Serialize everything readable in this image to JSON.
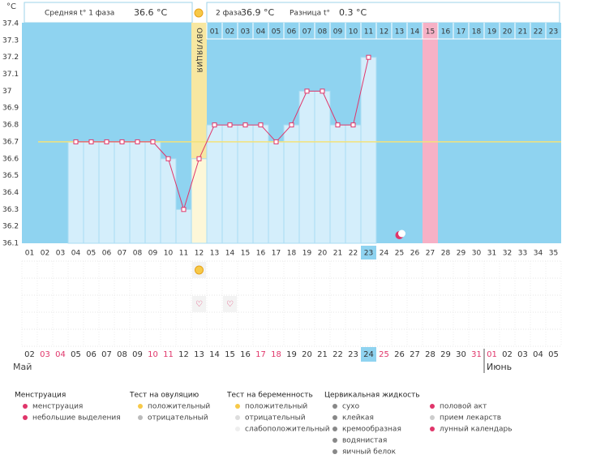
{
  "header": {
    "unit": "°C",
    "phase1_label": "Средняя t° 1 фаза",
    "phase1_value": "36.6 °C",
    "phase2_label": "2 фаза",
    "phase2_value": "36.9 °C",
    "diff_label": "Разница t°",
    "diff_value": "0.3 °C",
    "ovulation": "ОВУЛЯЦИЯ"
  },
  "chart_data": {
    "type": "bbt",
    "categories": [
      "01",
      "02",
      "03",
      "04",
      "05",
      "06",
      "07",
      "08",
      "09",
      "10",
      "11",
      "12",
      "13",
      "14",
      "15",
      "16",
      "17",
      "18",
      "19",
      "20",
      "21",
      "22",
      "23",
      "24",
      "25",
      "26",
      "27",
      "28",
      "29",
      "30",
      "31",
      "32",
      "33",
      "34",
      "35"
    ],
    "values": [
      null,
      null,
      null,
      36.7,
      36.7,
      36.7,
      36.7,
      36.7,
      36.7,
      36.6,
      36.3,
      36.6,
      36.8,
      36.8,
      36.8,
      36.8,
      36.7,
      36.8,
      37,
      37,
      36.8,
      36.8,
      37.2,
      null,
      null,
      null,
      null,
      null,
      null,
      null,
      null,
      null,
      null,
      null,
      null
    ],
    "color": "#e0356a",
    "ylim": [
      36.1,
      37.4
    ],
    "yticks": [
      37.4,
      37.3,
      37.2,
      37.1,
      37,
      36.9,
      36.8,
      36.7,
      36.6,
      36.5,
      36.4,
      36.3,
      36.2,
      36.1
    ],
    "coverline": 36.7,
    "phase2_days": [
      "01",
      "02",
      "03",
      "04",
      "05",
      "06",
      "07",
      "08",
      "09",
      "10",
      "11",
      "12",
      "13",
      "14",
      "15",
      "16",
      "17",
      "18",
      "19",
      "20",
      "21",
      "22",
      "23"
    ],
    "dates": [
      {
        "label": "02"
      },
      {
        "label": "03",
        "color": "#e0356a"
      },
      {
        "label": "04",
        "color": "#e0356a"
      },
      {
        "label": "05"
      },
      {
        "label": "06"
      },
      {
        "label": "07"
      },
      {
        "label": "08"
      },
      {
        "label": "09"
      },
      {
        "label": "10",
        "color": "#e0356a"
      },
      {
        "label": "11",
        "color": "#e0356a"
      },
      {
        "label": "12"
      },
      {
        "label": "13"
      },
      {
        "label": "14"
      },
      {
        "label": "15"
      },
      {
        "label": "16"
      },
      {
        "label": "17",
        "color": "#e0356a"
      },
      {
        "label": "18",
        "color": "#e0356a"
      },
      {
        "label": "19"
      },
      {
        "label": "20"
      },
      {
        "label": "21"
      },
      {
        "label": "22"
      },
      {
        "label": "23"
      },
      {
        "label": "24"
      },
      {
        "label": "25",
        "color": "#e0356a"
      },
      {
        "label": "26"
      },
      {
        "label": "27"
      },
      {
        "label": "28"
      },
      {
        "label": "29"
      },
      {
        "label": "30"
      },
      {
        "label": "31",
        "color": "#e0356a"
      },
      {
        "label": "01",
        "color": "#e0356a"
      },
      {
        "label": "02"
      },
      {
        "label": "03"
      },
      {
        "label": "04"
      },
      {
        "label": "05"
      }
    ],
    "months": [
      "Май",
      "Июнь"
    ]
  },
  "legend": [
    {
      "title": "Менструация",
      "items": [
        "менструация",
        "небольшие выделения"
      ]
    },
    {
      "title": "Тест на овуляцию",
      "items": [
        "положительный",
        "отрицательный"
      ]
    },
    {
      "title": "Тест на беременность",
      "items": [
        "положительный",
        "отрицательный",
        "слабоположительный"
      ]
    },
    {
      "title": "Цервикальная жидкость",
      "items": [
        "сухо",
        "клейкая",
        "кремообразная",
        "водянистая",
        "яичный белок"
      ]
    },
    {
      "items": [
        "половой акт",
        "прием лекарств",
        "лунный календарь"
      ]
    }
  ]
}
